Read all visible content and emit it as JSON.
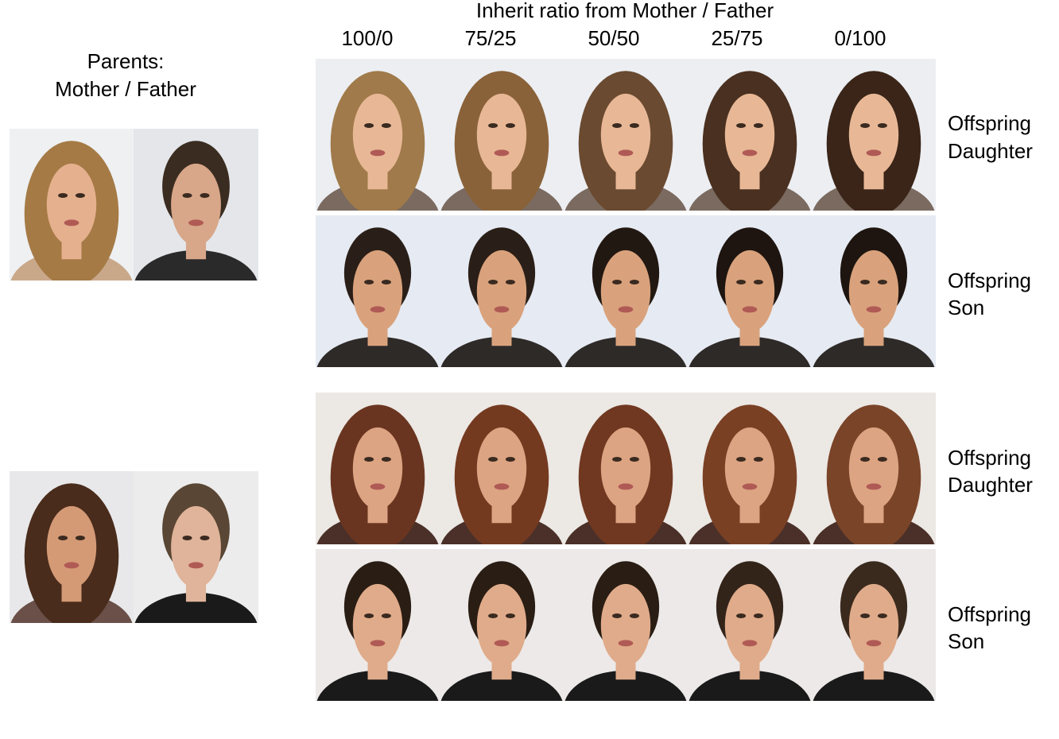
{
  "header": {
    "title": "Inherit ratio from Mother / Father",
    "columns": [
      "100/0",
      "75/25",
      "50/50",
      "25/75",
      "0/100"
    ]
  },
  "parents": {
    "label": [
      "Parents:",
      "Mother / Father"
    ]
  },
  "rows": [
    {
      "label": [
        "Offspring",
        "Daughter"
      ]
    },
    {
      "label": [
        "Offspring",
        "Son"
      ]
    },
    {
      "label": [
        "Offspring",
        "Daughter"
      ]
    },
    {
      "label": [
        "Offspring",
        "Son"
      ]
    }
  ]
}
